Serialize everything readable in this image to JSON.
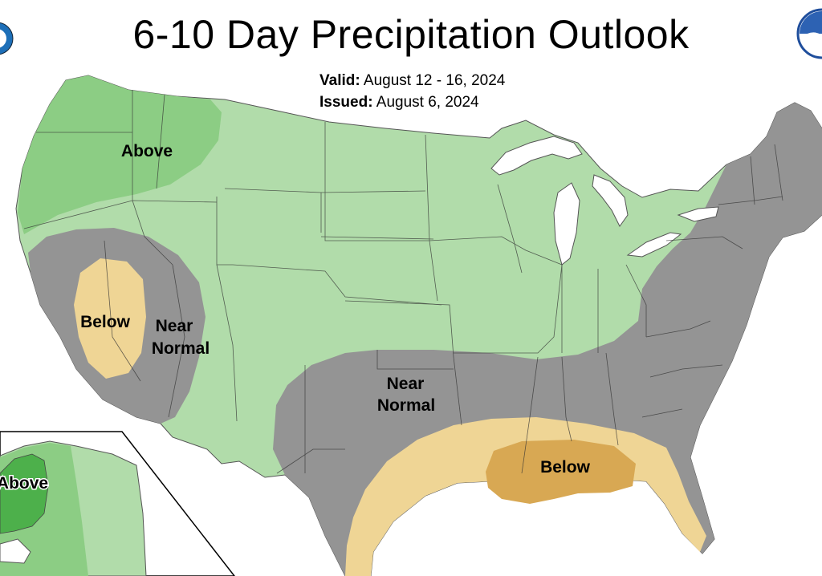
{
  "header": {
    "title": "6-10 Day Precipitation Outlook",
    "valid_label": "Valid:",
    "valid_dates": "August 12 - 16, 2024",
    "issued_label": "Issued:",
    "issued_date": "August 6, 2024"
  },
  "legend_categories": [
    {
      "name": "Above",
      "color": "#7fc77a"
    },
    {
      "name": "Near Normal",
      "color": "#909090"
    },
    {
      "name": "Below",
      "color": "#efd494"
    }
  ],
  "colors": {
    "above_light": "#b1dcaa",
    "above_medium": "#8ccd84",
    "above_strong": "#4db04b",
    "near_normal": "#949494",
    "below_light": "#efd595",
    "below_medium": "#d8a853",
    "water": "#ffffff"
  },
  "region_labels": {
    "northwest_above": "Above",
    "california_below": "Below",
    "great_basin_near": "Near",
    "great_basin_normal": "Normal",
    "southern_plains_near": "Near",
    "southern_plains_normal": "Normal",
    "gulf_coast_below": "Below",
    "alaska_above": "Above"
  }
}
